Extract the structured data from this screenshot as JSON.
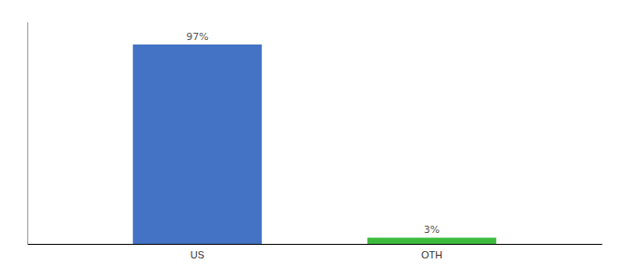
{
  "chart_data": {
    "type": "bar",
    "categories": [
      "US",
      "OTH"
    ],
    "values": [
      97,
      3
    ],
    "value_labels": [
      "97%",
      "3%"
    ],
    "colors": [
      "#4472c4",
      "#3dbb3d"
    ],
    "ylim": [
      0,
      108
    ],
    "data_labels": true,
    "tick_labels": "x",
    "grid": false
  }
}
